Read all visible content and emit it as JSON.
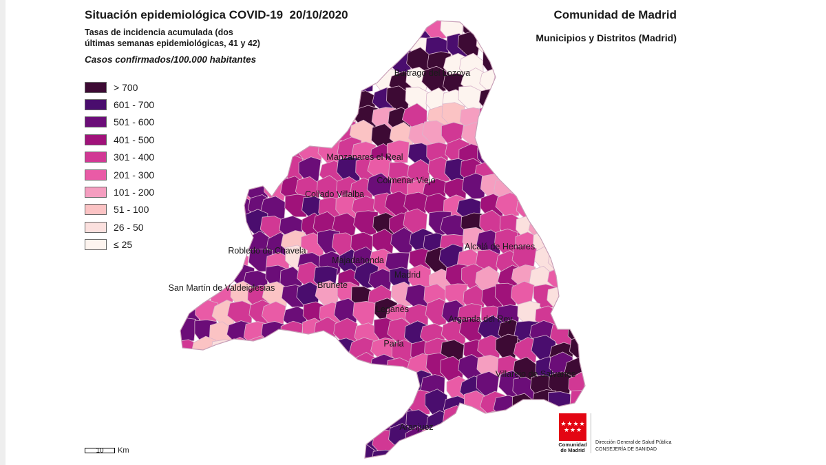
{
  "header": {
    "title": "Situación epidemiológica COVID-19  20/10/2020",
    "subtitle": "Tasas de incidencia acumulada (dos últimas semanas epidemiológicas, 41 y 42)",
    "units": "Casos confirmados/100.000 habitantes",
    "region": "Comunidad de Madrid",
    "region_sub": "Municipios y Distritos (Madrid)"
  },
  "legend": [
    {
      "label": "> 700",
      "color": "#3d0a34"
    },
    {
      "label": "601 - 700",
      "color": "#4a0d6e"
    },
    {
      "label": "501 - 600",
      "color": "#6b0d78"
    },
    {
      "label": "401 - 500",
      "color": "#a0127a"
    },
    {
      "label": "301 - 400",
      "color": "#d13894"
    },
    {
      "label": "201 - 300",
      "color": "#e95ba6"
    },
    {
      "label": "101 - 200",
      "color": "#f59ec0"
    },
    {
      "label": "51 - 100",
      "color": "#fbc3c4"
    },
    {
      "label": "26 - 50",
      "color": "#fbe0de"
    },
    {
      "label": "≤ 25",
      "color": "#fdf4ef"
    }
  ],
  "map_labels": [
    "Buitrago del Lozoya",
    "Manzanares el Real",
    "Colmenar Viejo",
    "Collado Villalba",
    "Robledo de Chavela",
    "Majadahonda",
    "Madrid",
    "Alcalá de Henares",
    "San Martín de Valdeiglesias",
    "Brunete",
    "Leganés",
    "Arganda del Rey",
    "Parla",
    "Villarejo de Salvanés",
    "Aranjuez"
  ],
  "scale": {
    "value": "10",
    "unit": "Km"
  },
  "logo": {
    "name": "Comunidad de Madrid",
    "line1": "Dirección General de Salud Pública",
    "line2": "CONSEJERÍA DE SANIDAD"
  }
}
